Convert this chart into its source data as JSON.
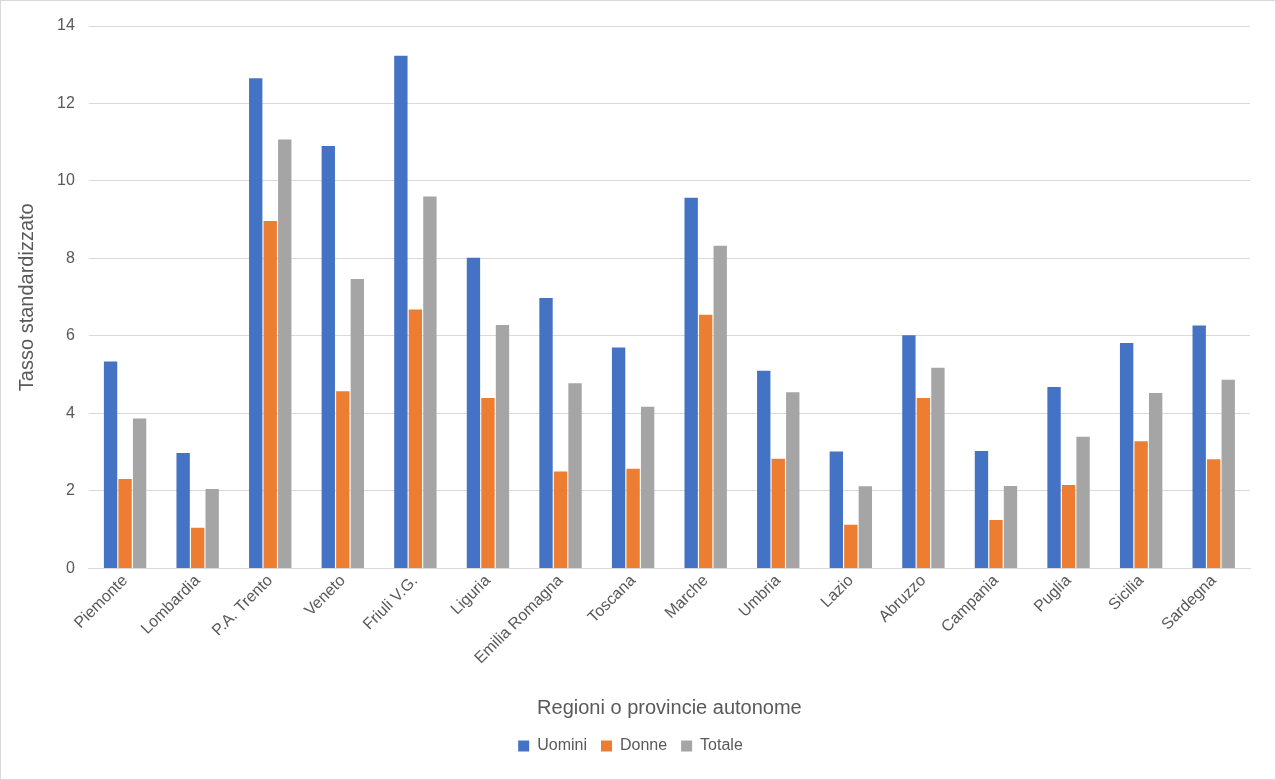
{
  "chart_data": {
    "type": "bar",
    "xlabel": "Regioni o provincie autonome",
    "ylabel": "Tasso standardizzato",
    "categories": [
      "Piemonte",
      "Lombardia",
      "P.A. Trento",
      "Veneto",
      "Friuli V.G.",
      "Liguria",
      "Emilia Romagna",
      "Toscana",
      "Marche",
      "Umbria",
      "Lazio",
      "Abruzzo",
      "Campania",
      "Puglia",
      "Sicilia",
      "Sardegna"
    ],
    "series": [
      {
        "name": "Uomini",
        "color": "#4472c4",
        "values": [
          5.34,
          2.98,
          12.65,
          10.9,
          13.23,
          8.02,
          6.98,
          5.7,
          9.57,
          5.1,
          3.02,
          6.02,
          3.03,
          4.68,
          5.82,
          6.27
        ]
      },
      {
        "name": "Donne",
        "color": "#ed7d31",
        "values": [
          2.31,
          1.05,
          8.97,
          4.57,
          6.68,
          4.4,
          2.5,
          2.57,
          6.55,
          2.83,
          1.13,
          4.4,
          1.25,
          2.15,
          3.28,
          2.82
        ]
      },
      {
        "name": "Totale",
        "color": "#a5a5a5",
        "values": [
          3.87,
          2.05,
          11.07,
          7.47,
          9.6,
          6.28,
          4.78,
          4.17,
          8.33,
          4.55,
          2.12,
          5.18,
          2.13,
          3.4,
          4.53,
          4.87
        ]
      }
    ],
    "ylim": [
      0,
      14
    ],
    "yticks": [
      0,
      2,
      4,
      6,
      8,
      10,
      12,
      14
    ],
    "grid": "y",
    "legend": "bottom"
  }
}
